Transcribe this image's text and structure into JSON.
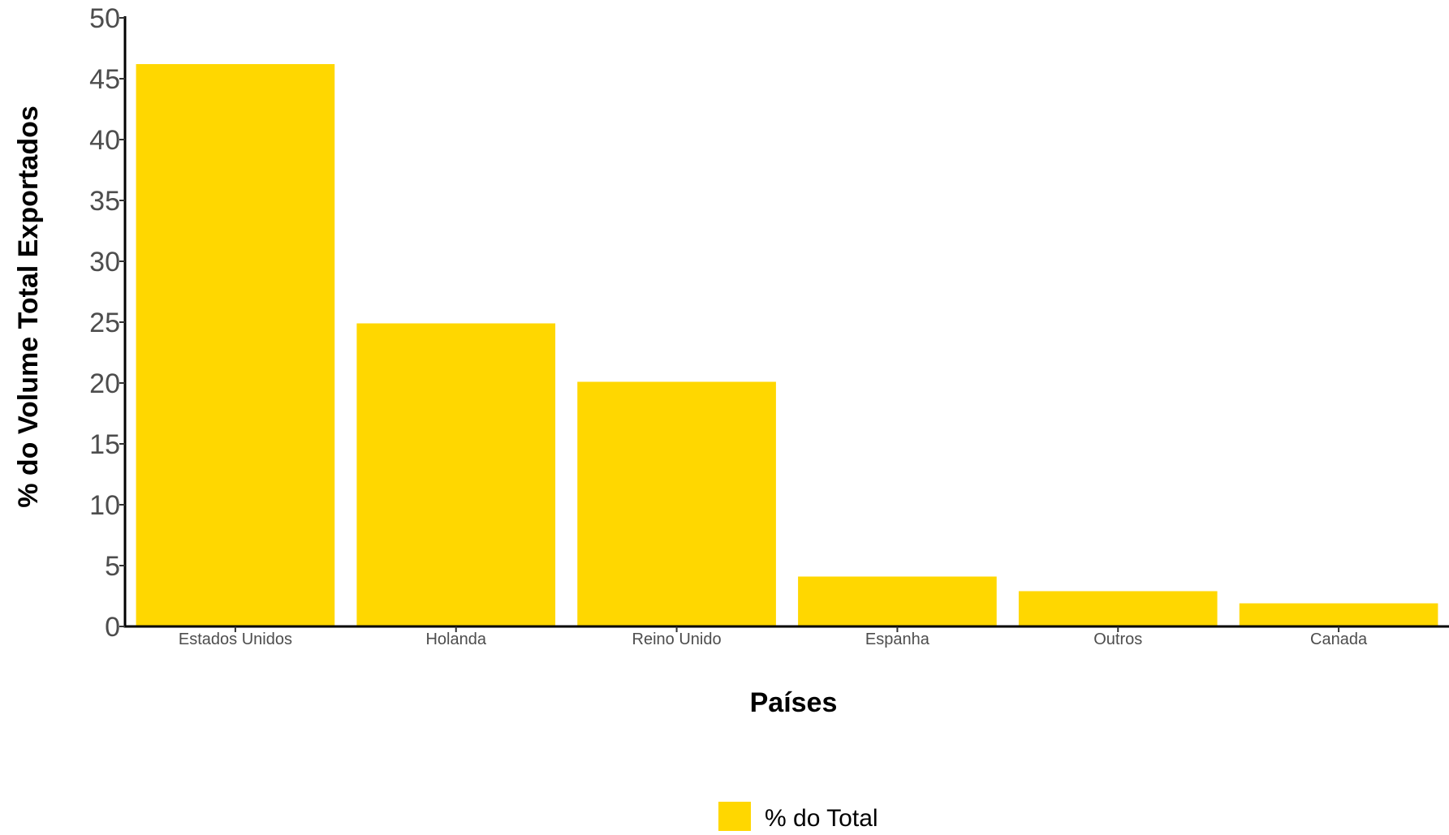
{
  "chart_data": {
    "type": "bar",
    "categories": [
      "Estados Unidos",
      "Holanda",
      "Reino Unido",
      "Espanha",
      "Outros",
      "Canada"
    ],
    "series": [
      {
        "name": "% do Total",
        "values": [
          46.2,
          24.9,
          20.1,
          4.1,
          2.9,
          1.9
        ],
        "color": "#FFD700"
      }
    ],
    "xlabel": "Países",
    "ylabel": "% do Volume Total Exportados",
    "ylim": [
      0,
      50
    ],
    "yticks": [
      0,
      5,
      10,
      15,
      20,
      25,
      30,
      35,
      40,
      45,
      50
    ],
    "grid": false,
    "legend": {
      "position": "bottom",
      "label": "% do Total",
      "color": "#FFD700"
    }
  }
}
